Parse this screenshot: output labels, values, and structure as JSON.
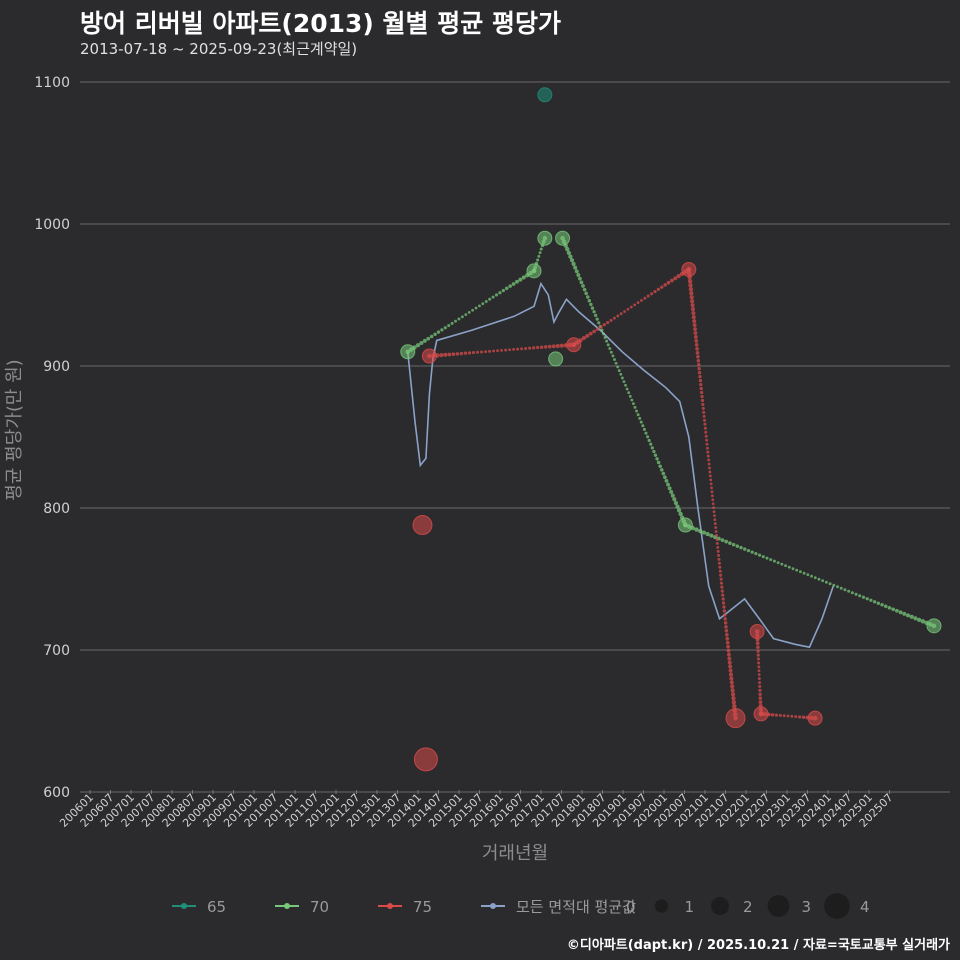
{
  "chart_data": {
    "type": "line",
    "title": "방어 리버빌 아파트(2013) 월별 평균 평당가",
    "subtitle": "2013-07-18 ~ 2025-09-23(최근계약일)",
    "caption": "©디아파트(dapt.kr) / 2025.10.21 / 자료=국토교통부 실거래가",
    "xlabel": "거래년월",
    "ylabel": "평균 평당가(만 원)",
    "ylim": [
      600,
      1100
    ],
    "yticks": [
      600,
      700,
      800,
      900,
      1000,
      1100
    ],
    "xlim": [
      2005.96,
      2026.08
    ],
    "x_tick_labels": [
      "200601",
      "200607",
      "200701",
      "200707",
      "200801",
      "200807",
      "200901",
      "200907",
      "201001",
      "201007",
      "201101",
      "201107",
      "201201",
      "201207",
      "201301",
      "201307",
      "201401",
      "201407",
      "201501",
      "201507",
      "201601",
      "201607",
      "201701",
      "201707",
      "201801",
      "201807",
      "201901",
      "201907",
      "202001",
      "202007",
      "202101",
      "202107",
      "202201",
      "202207",
      "202301",
      "202307",
      "202401",
      "202407",
      "202501",
      "202507"
    ],
    "series": [
      {
        "name": "65",
        "color": "#1f8f7a",
        "points": [
          {
            "x": 2016.71,
            "y": 1091,
            "n": 1
          }
        ]
      },
      {
        "name": "70",
        "color": "#78c87a",
        "points": [
          {
            "x": 2013.54,
            "y": 910,
            "n": 1
          },
          {
            "x": 2016.46,
            "y": 967,
            "n": 1
          },
          {
            "x": 2016.71,
            "y": 990,
            "n": 1
          },
          {
            "x": 2016.96,
            "y": 905,
            "n": 1
          },
          {
            "x": 2017.12,
            "y": 990,
            "n": 1
          },
          {
            "x": 2019.96,
            "y": 788,
            "n": 1
          },
          {
            "x": 2025.71,
            "y": 717,
            "n": 1
          }
        ],
        "lines": [
          [
            0,
            1
          ],
          [
            1,
            2
          ],
          [
            4,
            5
          ],
          [
            5,
            6
          ]
        ]
      },
      {
        "name": "75",
        "color": "#d94b4b",
        "points": [
          {
            "x": 2013.88,
            "y": 788,
            "n": 2
          },
          {
            "x": 2013.96,
            "y": 623,
            "n": 3
          },
          {
            "x": 2014.04,
            "y": 907,
            "n": 1
          },
          {
            "x": 2017.38,
            "y": 915,
            "n": 1
          },
          {
            "x": 2020.04,
            "y": 968,
            "n": 1
          },
          {
            "x": 2021.12,
            "y": 652,
            "n": 2
          },
          {
            "x": 2021.62,
            "y": 713,
            "n": 1
          },
          {
            "x": 2021.71,
            "y": 655,
            "n": 1
          },
          {
            "x": 2022.96,
            "y": 652,
            "n": 1
          }
        ],
        "lines": [
          [
            2,
            3
          ],
          [
            3,
            4
          ],
          [
            4,
            5
          ],
          [
            6,
            7
          ],
          [
            7,
            8
          ]
        ]
      },
      {
        "name": "모든 면적대 평균값",
        "color": "#8aa2c8",
        "line": [
          [
            2013.54,
            910
          ],
          [
            2013.71,
            860
          ],
          [
            2013.83,
            830
          ],
          [
            2013.96,
            835
          ],
          [
            2014.04,
            880
          ],
          [
            2014.12,
            905
          ],
          [
            2014.21,
            918
          ],
          [
            2015.0,
            925
          ],
          [
            2016.0,
            935
          ],
          [
            2016.46,
            942
          ],
          [
            2016.62,
            958
          ],
          [
            2016.79,
            950
          ],
          [
            2016.92,
            931
          ],
          [
            2017.04,
            938
          ],
          [
            2017.21,
            947
          ],
          [
            2017.5,
            938
          ],
          [
            2018.0,
            925
          ],
          [
            2018.5,
            910
          ],
          [
            2019.0,
            897
          ],
          [
            2019.5,
            885
          ],
          [
            2019.83,
            875
          ],
          [
            2020.04,
            850
          ],
          [
            2020.25,
            800
          ],
          [
            2020.5,
            745
          ],
          [
            2020.75,
            722
          ],
          [
            2021.0,
            728
          ],
          [
            2021.33,
            736
          ],
          [
            2021.67,
            722
          ],
          [
            2022.0,
            708
          ],
          [
            2022.5,
            704
          ],
          [
            2022.83,
            702
          ],
          [
            2023.12,
            722
          ],
          [
            2023.38,
            745
          ]
        ]
      }
    ],
    "size_legend": [
      0,
      1,
      2,
      3,
      4
    ]
  }
}
